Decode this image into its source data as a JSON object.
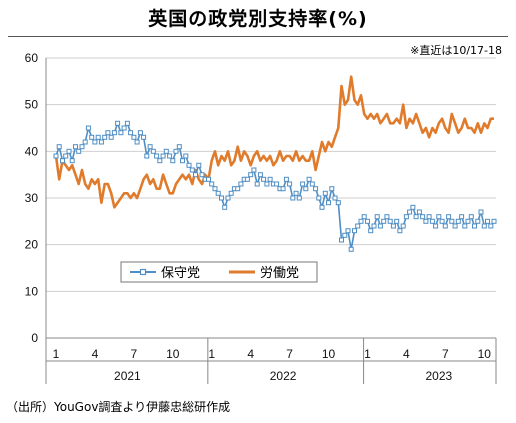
{
  "title": "英国の政党別支持率(%)",
  "note": "※直近は10/17-18",
  "source": "（出所）YouGov調査より伊藤忠総研作成",
  "colors": {
    "conservative": "#4f8ec4",
    "labour": "#e07b2c",
    "axis": "#888888",
    "grid": "#cfcfcf"
  },
  "chart_data": {
    "type": "line",
    "ylim": [
      0,
      60
    ],
    "yticks": [
      0,
      10,
      20,
      30,
      40,
      50,
      60
    ],
    "x_start": "2021-01",
    "x_end": "2023-10",
    "month_ticks": [
      {
        "label": "1",
        "t": 0
      },
      {
        "label": "4",
        "t": 3
      },
      {
        "label": "7",
        "t": 6
      },
      {
        "label": "10",
        "t": 9
      },
      {
        "label": "1",
        "t": 12
      },
      {
        "label": "4",
        "t": 15
      },
      {
        "label": "7",
        "t": 18
      },
      {
        "label": "10",
        "t": 21
      },
      {
        "label": "1",
        "t": 24
      },
      {
        "label": "4",
        "t": 27
      },
      {
        "label": "7",
        "t": 30
      },
      {
        "label": "10",
        "t": 33
      }
    ],
    "years": [
      {
        "label": "2021",
        "t_center": 5.5
      },
      {
        "label": "2022",
        "t_center": 17.5
      },
      {
        "label": "2023",
        "t_center": 29.5
      }
    ],
    "year_separators": [
      11.7,
      23.7
    ],
    "series": [
      {
        "name": "保守党",
        "marker": "square",
        "points": [
          [
            0.0,
            39
          ],
          [
            0.25,
            41
          ],
          [
            0.5,
            38
          ],
          [
            0.75,
            39
          ],
          [
            1.0,
            40
          ],
          [
            1.25,
            38
          ],
          [
            1.5,
            41
          ],
          [
            1.75,
            40
          ],
          [
            2.0,
            41
          ],
          [
            2.25,
            42
          ],
          [
            2.5,
            45
          ],
          [
            2.75,
            43
          ],
          [
            3.0,
            42
          ],
          [
            3.25,
            43
          ],
          [
            3.5,
            42
          ],
          [
            3.75,
            43
          ],
          [
            4.0,
            44
          ],
          [
            4.25,
            43
          ],
          [
            4.5,
            44
          ],
          [
            4.75,
            46
          ],
          [
            5.0,
            44
          ],
          [
            5.25,
            45
          ],
          [
            5.5,
            46
          ],
          [
            5.75,
            44
          ],
          [
            6.0,
            43
          ],
          [
            6.25,
            42
          ],
          [
            6.5,
            44
          ],
          [
            6.75,
            43
          ],
          [
            7.0,
            39
          ],
          [
            7.25,
            41
          ],
          [
            7.5,
            40
          ],
          [
            7.75,
            39
          ],
          [
            8.0,
            38
          ],
          [
            8.25,
            39
          ],
          [
            8.5,
            40
          ],
          [
            8.75,
            39
          ],
          [
            9.0,
            38
          ],
          [
            9.25,
            40
          ],
          [
            9.5,
            41
          ],
          [
            9.75,
            38
          ],
          [
            10.0,
            39
          ],
          [
            10.25,
            37
          ],
          [
            10.5,
            36
          ],
          [
            10.75,
            35
          ],
          [
            11.0,
            37
          ],
          [
            11.25,
            35
          ],
          [
            11.5,
            34
          ],
          [
            11.75,
            34
          ],
          [
            12.0,
            33
          ],
          [
            12.25,
            32
          ],
          [
            12.5,
            31
          ],
          [
            12.75,
            30
          ],
          [
            13.0,
            28
          ],
          [
            13.25,
            30
          ],
          [
            13.5,
            31
          ],
          [
            13.75,
            32
          ],
          [
            14.0,
            32
          ],
          [
            14.25,
            33
          ],
          [
            14.5,
            34
          ],
          [
            14.75,
            34
          ],
          [
            15.0,
            35
          ],
          [
            15.25,
            36
          ],
          [
            15.5,
            33
          ],
          [
            15.75,
            35
          ],
          [
            16.0,
            34
          ],
          [
            16.25,
            33
          ],
          [
            16.5,
            34
          ],
          [
            16.75,
            33
          ],
          [
            17.0,
            33
          ],
          [
            17.25,
            32
          ],
          [
            17.5,
            32
          ],
          [
            17.75,
            34
          ],
          [
            18.0,
            33
          ],
          [
            18.25,
            30
          ],
          [
            18.5,
            31
          ],
          [
            18.75,
            30
          ],
          [
            19.0,
            33
          ],
          [
            19.25,
            32
          ],
          [
            19.5,
            34
          ],
          [
            19.75,
            33
          ],
          [
            20.0,
            32
          ],
          [
            20.25,
            30
          ],
          [
            20.5,
            28
          ],
          [
            20.75,
            31
          ],
          [
            21.0,
            29
          ],
          [
            21.25,
            32
          ],
          [
            21.5,
            30
          ],
          [
            21.75,
            29
          ],
          [
            22.0,
            21
          ],
          [
            22.25,
            22
          ],
          [
            22.5,
            23
          ],
          [
            22.75,
            19
          ],
          [
            23.0,
            23
          ],
          [
            23.25,
            24
          ],
          [
            23.5,
            25
          ],
          [
            23.75,
            26
          ],
          [
            24.0,
            25
          ],
          [
            24.25,
            23
          ],
          [
            24.5,
            24
          ],
          [
            24.75,
            26
          ],
          [
            25.0,
            24
          ],
          [
            25.25,
            25
          ],
          [
            25.5,
            26
          ],
          [
            25.75,
            25
          ],
          [
            26.0,
            24
          ],
          [
            26.25,
            25
          ],
          [
            26.5,
            23
          ],
          [
            26.75,
            24
          ],
          [
            27.0,
            26
          ],
          [
            27.25,
            27
          ],
          [
            27.5,
            28
          ],
          [
            27.75,
            26
          ],
          [
            28.0,
            27
          ],
          [
            28.25,
            26
          ],
          [
            28.5,
            25
          ],
          [
            28.75,
            26
          ],
          [
            29.0,
            25
          ],
          [
            29.25,
            24
          ],
          [
            29.5,
            26
          ],
          [
            29.75,
            25
          ],
          [
            30.0,
            24
          ],
          [
            30.25,
            26
          ],
          [
            30.5,
            25
          ],
          [
            30.75,
            24
          ],
          [
            31.0,
            25
          ],
          [
            31.25,
            26
          ],
          [
            31.5,
            24
          ],
          [
            31.75,
            25
          ],
          [
            32.0,
            26
          ],
          [
            32.25,
            24
          ],
          [
            32.5,
            25
          ],
          [
            32.75,
            27
          ],
          [
            33.0,
            24
          ],
          [
            33.25,
            25
          ],
          [
            33.5,
            24
          ],
          [
            33.75,
            25
          ]
        ]
      },
      {
        "name": "労働党",
        "marker": "none",
        "points": [
          [
            0.0,
            39
          ],
          [
            0.25,
            34
          ],
          [
            0.5,
            38
          ],
          [
            0.75,
            37
          ],
          [
            1.0,
            36
          ],
          [
            1.25,
            37
          ],
          [
            1.5,
            35
          ],
          [
            1.75,
            33
          ],
          [
            2.0,
            36
          ],
          [
            2.25,
            33
          ],
          [
            2.5,
            32
          ],
          [
            2.75,
            34
          ],
          [
            3.0,
            33
          ],
          [
            3.25,
            34
          ],
          [
            3.5,
            29
          ],
          [
            3.75,
            33
          ],
          [
            4.0,
            33
          ],
          [
            4.25,
            31
          ],
          [
            4.5,
            28
          ],
          [
            4.75,
            29
          ],
          [
            5.0,
            30
          ],
          [
            5.25,
            31
          ],
          [
            5.5,
            31
          ],
          [
            5.75,
            30
          ],
          [
            6.0,
            31
          ],
          [
            6.25,
            30
          ],
          [
            6.5,
            32
          ],
          [
            6.75,
            34
          ],
          [
            7.0,
            35
          ],
          [
            7.25,
            33
          ],
          [
            7.5,
            34
          ],
          [
            7.75,
            32
          ],
          [
            8.0,
            32
          ],
          [
            8.25,
            35
          ],
          [
            8.5,
            33
          ],
          [
            8.75,
            31
          ],
          [
            9.0,
            31
          ],
          [
            9.25,
            33
          ],
          [
            9.5,
            34
          ],
          [
            9.75,
            35
          ],
          [
            10.0,
            34
          ],
          [
            10.25,
            35
          ],
          [
            10.5,
            33
          ],
          [
            10.75,
            36
          ],
          [
            11.0,
            34
          ],
          [
            11.25,
            33
          ],
          [
            11.5,
            35
          ],
          [
            11.75,
            34
          ],
          [
            12.0,
            38
          ],
          [
            12.25,
            40
          ],
          [
            12.5,
            37
          ],
          [
            12.75,
            39
          ],
          [
            13.0,
            38
          ],
          [
            13.25,
            40
          ],
          [
            13.5,
            37
          ],
          [
            13.75,
            38
          ],
          [
            14.0,
            41
          ],
          [
            14.25,
            38
          ],
          [
            14.5,
            40
          ],
          [
            14.75,
            39
          ],
          [
            15.0,
            37
          ],
          [
            15.25,
            39
          ],
          [
            15.5,
            40
          ],
          [
            15.75,
            38
          ],
          [
            16.0,
            39
          ],
          [
            16.25,
            38
          ],
          [
            16.5,
            39
          ],
          [
            16.75,
            37
          ],
          [
            17.0,
            38
          ],
          [
            17.25,
            40
          ],
          [
            17.5,
            38
          ],
          [
            17.75,
            39
          ],
          [
            18.0,
            39
          ],
          [
            18.25,
            38
          ],
          [
            18.5,
            40
          ],
          [
            18.75,
            38
          ],
          [
            19.0,
            39
          ],
          [
            19.25,
            38
          ],
          [
            19.5,
            38
          ],
          [
            19.75,
            40
          ],
          [
            20.0,
            36
          ],
          [
            20.25,
            39
          ],
          [
            20.5,
            42
          ],
          [
            20.75,
            40
          ],
          [
            21.0,
            42
          ],
          [
            21.25,
            41
          ],
          [
            21.5,
            43
          ],
          [
            21.75,
            45
          ],
          [
            22.0,
            54
          ],
          [
            22.25,
            50
          ],
          [
            22.5,
            51
          ],
          [
            22.75,
            56
          ],
          [
            23.0,
            51
          ],
          [
            23.25,
            50
          ],
          [
            23.5,
            52
          ],
          [
            23.75,
            48
          ],
          [
            24.0,
            47
          ],
          [
            24.25,
            48
          ],
          [
            24.5,
            47
          ],
          [
            24.75,
            48
          ],
          [
            25.0,
            46
          ],
          [
            25.25,
            47
          ],
          [
            25.5,
            48
          ],
          [
            25.75,
            46
          ],
          [
            26.0,
            46
          ],
          [
            26.25,
            47
          ],
          [
            26.5,
            46
          ],
          [
            26.75,
            50
          ],
          [
            27.0,
            45
          ],
          [
            27.25,
            47
          ],
          [
            27.5,
            46
          ],
          [
            27.75,
            48
          ],
          [
            28.0,
            46
          ],
          [
            28.25,
            44
          ],
          [
            28.5,
            45
          ],
          [
            28.75,
            43
          ],
          [
            29.0,
            45
          ],
          [
            29.25,
            44
          ],
          [
            29.5,
            46
          ],
          [
            29.75,
            47
          ],
          [
            30.0,
            45
          ],
          [
            30.25,
            44
          ],
          [
            30.5,
            48
          ],
          [
            30.75,
            46
          ],
          [
            31.0,
            44
          ],
          [
            31.25,
            45
          ],
          [
            31.5,
            47
          ],
          [
            31.75,
            45
          ],
          [
            32.0,
            45
          ],
          [
            32.25,
            44
          ],
          [
            32.5,
            46
          ],
          [
            32.75,
            44
          ],
          [
            33.0,
            46
          ],
          [
            33.25,
            45
          ],
          [
            33.5,
            47
          ],
          [
            33.75,
            47
          ]
        ]
      }
    ]
  }
}
